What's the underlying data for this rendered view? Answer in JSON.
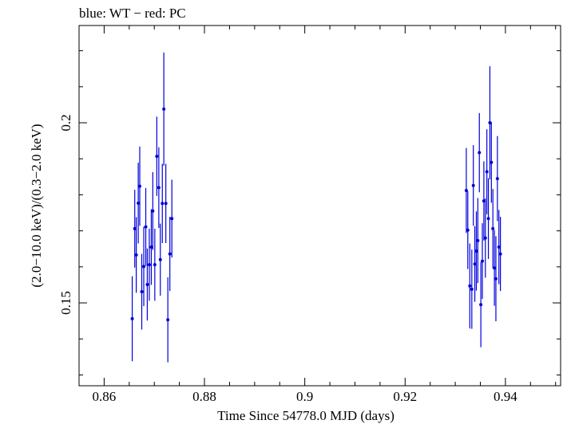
{
  "header": {
    "title": "blue: WT − red: PC"
  },
  "chart_data": {
    "type": "scatter",
    "title": "blue: WT − red: PC",
    "xlabel": "Time Since 54778.0 MJD (days)",
    "ylabel": "(2.0−10.0 keV)/(0.3−2.0 keV)",
    "xlim": [
      0.855,
      0.951
    ],
    "ylim": [
      0.127,
      0.227
    ],
    "xticks": [
      0.86,
      0.88,
      0.9,
      0.92,
      0.94
    ],
    "xtick_labels": [
      "0.86",
      "0.88",
      "0.9",
      "0.92",
      "0.94"
    ],
    "yticks": [
      0.15,
      0.2
    ],
    "ytick_labels": [
      "0.15",
      "0.2"
    ],
    "grid": false,
    "colors": {
      "WT": "#0000dd",
      "PC": "#dd0000"
    },
    "series": [
      {
        "name": "WT",
        "color": "#0000dd",
        "points": [
          {
            "x": 0.8656,
            "y": 0.1456,
            "err": 0.0118
          },
          {
            "x": 0.8661,
            "y": 0.1706,
            "err": 0.0108
          },
          {
            "x": 0.8664,
            "y": 0.1633,
            "err": 0.0105
          },
          {
            "x": 0.8668,
            "y": 0.1777,
            "err": 0.0112
          },
          {
            "x": 0.8671,
            "y": 0.1824,
            "err": 0.011
          },
          {
            "x": 0.8675,
            "y": 0.1531,
            "err": 0.0105
          },
          {
            "x": 0.8679,
            "y": 0.1601,
            "err": 0.011
          },
          {
            "x": 0.8683,
            "y": 0.1711,
            "err": 0.0108
          },
          {
            "x": 0.8686,
            "y": 0.1551,
            "err": 0.01
          },
          {
            "x": 0.869,
            "y": 0.1606,
            "err": 0.01
          },
          {
            "x": 0.8694,
            "y": 0.1655,
            "err": 0.0105
          },
          {
            "x": 0.8697,
            "y": 0.1755,
            "err": 0.0108
          },
          {
            "x": 0.8701,
            "y": 0.1606,
            "err": 0.01
          },
          {
            "x": 0.8705,
            "y": 0.1907,
            "err": 0.011
          },
          {
            "x": 0.8709,
            "y": 0.182,
            "err": 0.0112
          },
          {
            "x": 0.8712,
            "y": 0.162,
            "err": 0.01
          },
          {
            "x": 0.8716,
            "y": 0.1776,
            "err": 0.011
          },
          {
            "x": 0.8719,
            "y": 0.2038,
            "err": 0.0157
          },
          {
            "x": 0.8723,
            "y": 0.1776,
            "err": 0.011
          },
          {
            "x": 0.8727,
            "y": 0.1453,
            "err": 0.0118
          },
          {
            "x": 0.8731,
            "y": 0.1636,
            "err": 0.0103
          },
          {
            "x": 0.8735,
            "y": 0.1734,
            "err": 0.0108
          }
        ]
      },
      {
        "name": "WT",
        "color": "#0000dd",
        "points": [
          {
            "x": 0.9322,
            "y": 0.1812,
            "err": 0.0118
          },
          {
            "x": 0.9325,
            "y": 0.1702,
            "err": 0.0108
          },
          {
            "x": 0.9329,
            "y": 0.1547,
            "err": 0.0118
          },
          {
            "x": 0.9333,
            "y": 0.1538,
            "err": 0.011
          },
          {
            "x": 0.9336,
            "y": 0.1826,
            "err": 0.0112
          },
          {
            "x": 0.9339,
            "y": 0.1608,
            "err": 0.0105
          },
          {
            "x": 0.9342,
            "y": 0.1644,
            "err": 0.011
          },
          {
            "x": 0.9345,
            "y": 0.1673,
            "err": 0.0118
          },
          {
            "x": 0.9348,
            "y": 0.1917,
            "err": 0.011
          },
          {
            "x": 0.9351,
            "y": 0.1495,
            "err": 0.0118
          },
          {
            "x": 0.9354,
            "y": 0.1616,
            "err": 0.0105
          },
          {
            "x": 0.9357,
            "y": 0.1783,
            "err": 0.011
          },
          {
            "x": 0.936,
            "y": 0.168,
            "err": 0.011
          },
          {
            "x": 0.9363,
            "y": 0.1864,
            "err": 0.0118
          },
          {
            "x": 0.9366,
            "y": 0.1734,
            "err": 0.0112
          },
          {
            "x": 0.9369,
            "y": 0.2,
            "err": 0.0157
          },
          {
            "x": 0.9372,
            "y": 0.189,
            "err": 0.0112
          },
          {
            "x": 0.9375,
            "y": 0.1706,
            "err": 0.011
          },
          {
            "x": 0.9378,
            "y": 0.1597,
            "err": 0.0105
          },
          {
            "x": 0.9381,
            "y": 0.1567,
            "err": 0.0118
          },
          {
            "x": 0.9384,
            "y": 0.1845,
            "err": 0.0118
          },
          {
            "x": 0.9387,
            "y": 0.1655,
            "err": 0.0103
          },
          {
            "x": 0.939,
            "y": 0.1636,
            "err": 0.0103
          }
        ]
      }
    ]
  }
}
